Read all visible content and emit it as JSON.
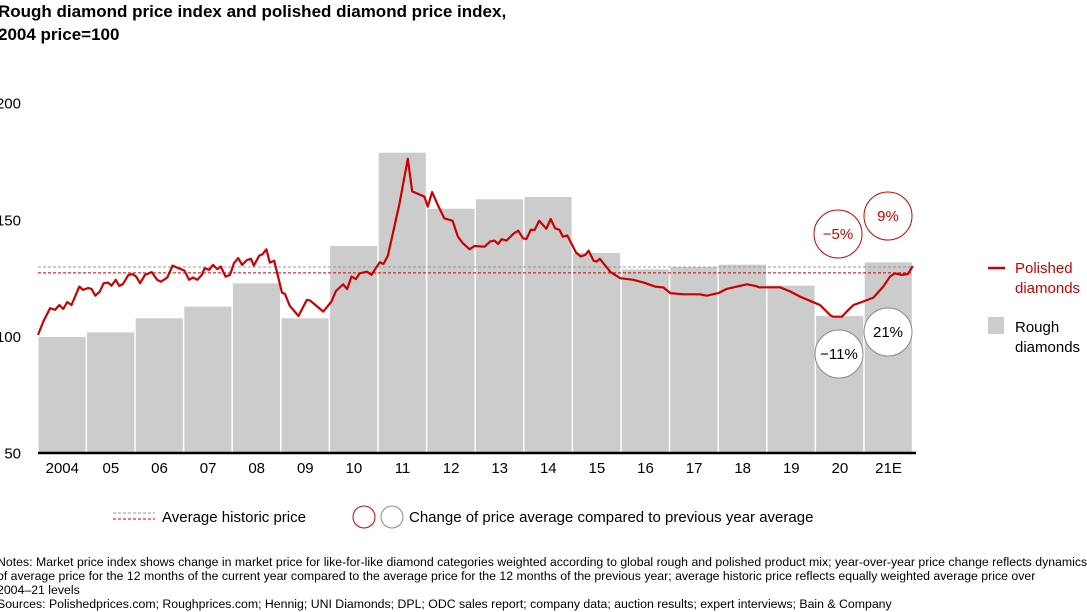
{
  "title_line1": "Rough diamond price index and polished diamond price index,",
  "title_line2": "2004 price=100",
  "notes": [
    "Notes: Market price index shows change in market price for like-for-like diamond categories weighted according to global rough and polished product mix; year-over-year price change reflects dynamics",
    "of average price for the 12 months of the current year compared to the average price for the 12 months of the previous year; average historic price reflects equally weighted average price over",
    "2004–21 levels",
    "Sources: Polishedprices.com; Roughprices.com; Hennig; UNI Diamonds; DPL; ODC sales report; company data; auction results; expert interviews; Bain & Company"
  ],
  "legend_bottom": {
    "average_label": "Average historic price",
    "change_label": "Change of price average compared to previous year average"
  },
  "colors": {
    "polished": "#cc0000",
    "rough": "#cccccc",
    "rough_avg": "#999999",
    "axis": "#000000"
  },
  "chart_data": {
    "type": "bar+line",
    "ylim": [
      50,
      200
    ],
    "yticks": [
      50,
      100,
      150,
      200
    ],
    "grid": false,
    "legend_placement": "right",
    "categories": [
      "2004",
      "05",
      "06",
      "07",
      "08",
      "09",
      "10",
      "11",
      "12",
      "13",
      "14",
      "15",
      "16",
      "17",
      "18",
      "19",
      "20",
      "21E"
    ],
    "series": [
      {
        "name": "Rough diamonds",
        "kind": "bar",
        "values": [
          100,
          102,
          108,
          113,
          123,
          108,
          139,
          179,
          155,
          159,
          160,
          136,
          129,
          130,
          131,
          122,
          109,
          132
        ]
      },
      {
        "name": "Polished diamonds",
        "kind": "line",
        "points": [
          [
            2004.0,
            100.9
          ],
          [
            2004.11,
            106.6
          ],
          [
            2004.25,
            112.4
          ],
          [
            2004.35,
            111.6
          ],
          [
            2004.44,
            113.7
          ],
          [
            2004.52,
            112
          ],
          [
            2004.6,
            115
          ],
          [
            2004.69,
            113.7
          ],
          [
            2004.85,
            121.6
          ],
          [
            2004.93,
            120.2
          ],
          [
            2005.03,
            121
          ],
          [
            2005.1,
            120.6
          ],
          [
            2005.18,
            117.7
          ],
          [
            2005.27,
            119.4
          ],
          [
            2005.35,
            123
          ],
          [
            2005.44,
            123.3
          ],
          [
            2005.51,
            122
          ],
          [
            2005.6,
            124.5
          ],
          [
            2005.67,
            121.9
          ],
          [
            2005.75,
            122.7
          ],
          [
            2005.86,
            126.6
          ],
          [
            2005.95,
            126.9
          ],
          [
            2006.02,
            125.9
          ],
          [
            2006.1,
            123
          ],
          [
            2006.2,
            126.6
          ],
          [
            2006.34,
            127.8
          ],
          [
            2006.45,
            124.5
          ],
          [
            2006.53,
            123.7
          ],
          [
            2006.66,
            125.5
          ],
          [
            2006.77,
            130.6
          ],
          [
            2006.89,
            129.5
          ],
          [
            2007.01,
            128.5
          ],
          [
            2007.11,
            124.5
          ],
          [
            2007.19,
            125.5
          ],
          [
            2007.28,
            124.5
          ],
          [
            2007.37,
            126.6
          ],
          [
            2007.43,
            129.5
          ],
          [
            2007.52,
            128.8
          ],
          [
            2007.6,
            130.9
          ],
          [
            2007.69,
            129.1
          ],
          [
            2007.76,
            130.2
          ],
          [
            2007.86,
            125.9
          ],
          [
            2007.95,
            126.6
          ],
          [
            2008.03,
            131.6
          ],
          [
            2008.12,
            133.8
          ],
          [
            2008.2,
            130.9
          ],
          [
            2008.3,
            133
          ],
          [
            2008.38,
            133.5
          ],
          [
            2008.44,
            130.6
          ],
          [
            2008.55,
            134.8
          ],
          [
            2008.62,
            135.5
          ],
          [
            2008.7,
            137.6
          ],
          [
            2008.77,
            131.9
          ],
          [
            2008.86,
            132.7
          ],
          [
            2009.02,
            119
          ],
          [
            2009.08,
            118.5
          ],
          [
            2009.18,
            113.4
          ],
          [
            2009.36,
            109
          ],
          [
            2009.53,
            115.9
          ],
          [
            2009.6,
            115.6
          ],
          [
            2009.87,
            110.9
          ],
          [
            2010.04,
            115.2
          ],
          [
            2010.13,
            119.7
          ],
          [
            2010.28,
            122.6
          ],
          [
            2010.36,
            120.5
          ],
          [
            2010.45,
            125.9
          ],
          [
            2010.54,
            124.8
          ],
          [
            2010.62,
            127.3
          ],
          [
            2010.77,
            128
          ],
          [
            2010.86,
            126.6
          ],
          [
            2011.03,
            132
          ],
          [
            2011.11,
            131.3
          ],
          [
            2011.2,
            134.9
          ],
          [
            2011.44,
            157.4
          ],
          [
            2011.61,
            176.4
          ],
          [
            2011.7,
            162.4
          ],
          [
            2011.95,
            160.2
          ],
          [
            2012.02,
            155.9
          ],
          [
            2012.11,
            162.1
          ],
          [
            2012.23,
            156.4
          ],
          [
            2012.36,
            150.9
          ],
          [
            2012.53,
            149.8
          ],
          [
            2012.64,
            143
          ],
          [
            2012.74,
            140.2
          ],
          [
            2012.88,
            137.6
          ],
          [
            2012.98,
            139
          ],
          [
            2013.19,
            138.7
          ],
          [
            2013.3,
            140.9
          ],
          [
            2013.39,
            141.3
          ],
          [
            2013.47,
            139.9
          ],
          [
            2013.54,
            141.9
          ],
          [
            2013.64,
            141.3
          ],
          [
            2013.78,
            144.2
          ],
          [
            2013.88,
            145.6
          ],
          [
            2013.98,
            142.3
          ],
          [
            2014.05,
            142
          ],
          [
            2014.14,
            145.9
          ],
          [
            2014.22,
            145.9
          ],
          [
            2014.31,
            149.8
          ],
          [
            2014.46,
            146.4
          ],
          [
            2014.55,
            150.6
          ],
          [
            2014.64,
            146.6
          ],
          [
            2014.73,
            145.9
          ],
          [
            2014.8,
            143
          ],
          [
            2014.89,
            143.5
          ],
          [
            2015.07,
            136.2
          ],
          [
            2015.17,
            134.5
          ],
          [
            2015.26,
            135.2
          ],
          [
            2015.33,
            137
          ],
          [
            2015.43,
            132.7
          ],
          [
            2015.49,
            132.3
          ],
          [
            2015.56,
            133.5
          ],
          [
            2015.78,
            127.8
          ],
          [
            2015.98,
            125.2
          ],
          [
            2016.25,
            124.5
          ],
          [
            2016.46,
            123.3
          ],
          [
            2016.7,
            121.6
          ],
          [
            2016.87,
            121.2
          ],
          [
            2017.01,
            118.8
          ],
          [
            2017.28,
            118.3
          ],
          [
            2017.62,
            118.3
          ],
          [
            2017.76,
            117.7
          ],
          [
            2018.0,
            118.8
          ],
          [
            2018.17,
            120.6
          ],
          [
            2018.38,
            121.6
          ],
          [
            2018.59,
            122.6
          ],
          [
            2018.76,
            121.9
          ],
          [
            2018.84,
            121.3
          ],
          [
            2019.0,
            121.3
          ],
          [
            2019.27,
            121.3
          ],
          [
            2019.48,
            119.5
          ],
          [
            2019.68,
            117.3
          ],
          [
            2019.95,
            114.9
          ],
          [
            2020.09,
            113.7
          ],
          [
            2020.3,
            109.4
          ],
          [
            2020.36,
            108.7
          ],
          [
            2020.54,
            108.7
          ],
          [
            2020.64,
            110.9
          ],
          [
            2020.78,
            113.7
          ],
          [
            2020.98,
            115.2
          ],
          [
            2021.19,
            116.9
          ],
          [
            2021.39,
            121.6
          ],
          [
            2021.53,
            125.9
          ],
          [
            2021.63,
            127.3
          ],
          [
            2021.77,
            126.6
          ],
          [
            2021.9,
            127
          ],
          [
            2022.0,
            130.4
          ]
        ]
      }
    ],
    "average_lines": [
      {
        "series": "Rough diamonds",
        "value": 130,
        "style": "dashed"
      },
      {
        "series": "Polished diamonds",
        "value": 127.5,
        "style": "dashed"
      }
    ],
    "annotations": [
      {
        "year": "20",
        "series": "Polished diamonds",
        "text": "−5%"
      },
      {
        "year": "21E",
        "series": "Polished diamonds",
        "text": "9%"
      },
      {
        "year": "20",
        "series": "Rough diamonds",
        "text": "−11%"
      },
      {
        "year": "21E",
        "series": "Rough diamonds",
        "text": "21%"
      }
    ],
    "legend": [
      {
        "label_line1": "Polished",
        "label_line2": "diamonds"
      },
      {
        "label_line1": "Rough",
        "label_line2": "diamonds"
      }
    ]
  }
}
